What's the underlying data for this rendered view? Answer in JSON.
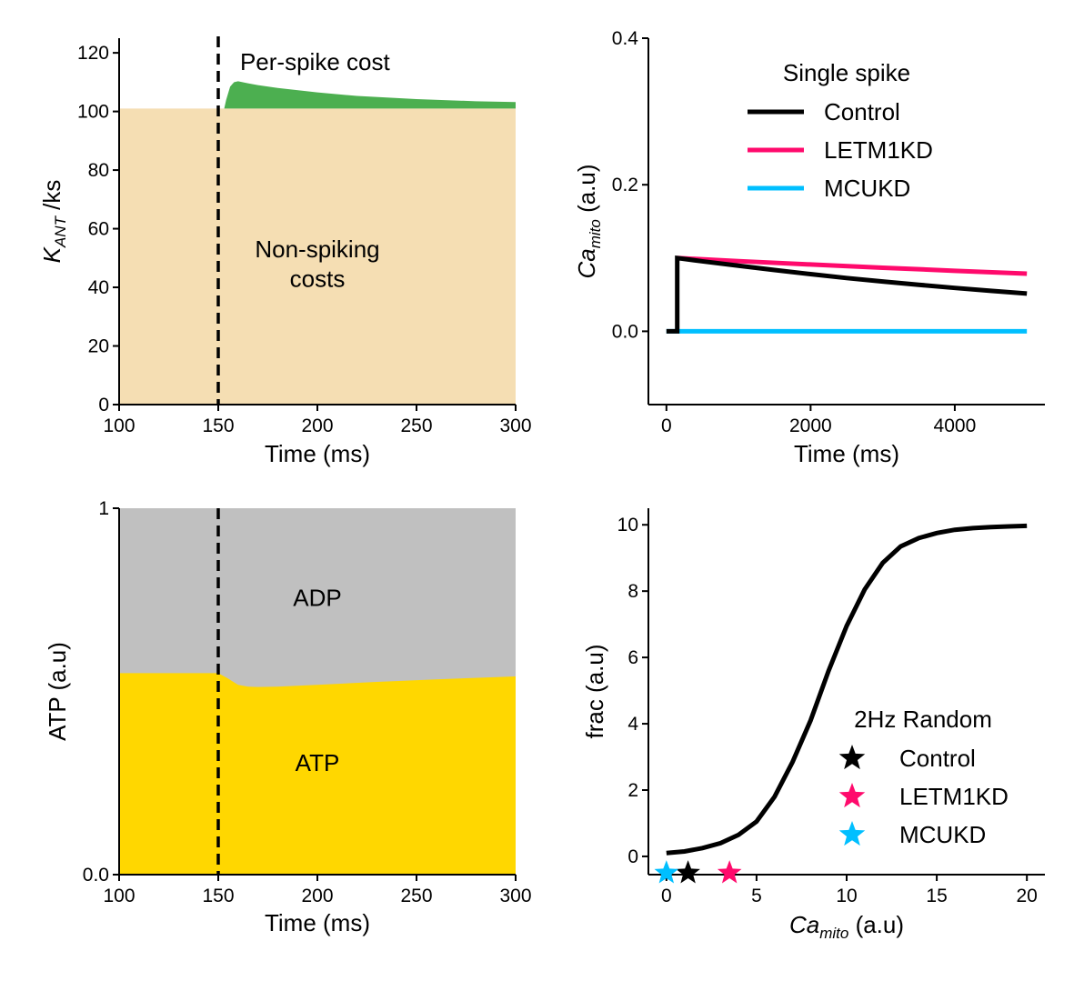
{
  "chart_data": [
    {
      "type": "area",
      "panel": "top-left",
      "xlabel": "Time (ms)",
      "ylabel_main": "K",
      "ylabel_sub": "ANT",
      "ylabel_rest": " /ks",
      "xlim": [
        100,
        300
      ],
      "ylim": [
        0,
        125
      ],
      "xticks": [
        100,
        150,
        200,
        250,
        300
      ],
      "yticks": [
        0,
        20,
        40,
        60,
        80,
        100,
        120
      ],
      "spike_time": 150,
      "baseline": 101,
      "series": [
        {
          "name": "Non-spiking costs",
          "color": "#F5DEB3",
          "x": [
            100,
            300
          ],
          "y": [
            101,
            101
          ]
        },
        {
          "name": "Per-spike cost",
          "color": "#4CAF50",
          "x": [
            153,
            154,
            156,
            158,
            160,
            165,
            170,
            180,
            200,
            220,
            250,
            280,
            300
          ],
          "y": [
            101,
            104,
            108.5,
            110,
            110.3,
            109.6,
            109,
            108,
            106.5,
            105.3,
            104.2,
            103.5,
            103.2
          ]
        }
      ],
      "annotations": [
        {
          "text": "Per-spike cost",
          "x": 161,
          "y": 117
        },
        {
          "text": "Non-spiking",
          "x": 200,
          "y": 53
        },
        {
          "text": "costs",
          "x": 200,
          "y": 43
        }
      ]
    },
    {
      "type": "line",
      "panel": "top-right",
      "xlabel": "Time (ms)",
      "ylabel_main": "Ca",
      "ylabel_sub": "mito",
      "ylabel_rest": " (a.u)",
      "xlim": [
        -250,
        5250
      ],
      "ylim": [
        -0.1,
        0.4
      ],
      "xticks": [
        0,
        2000,
        4000
      ],
      "yticks": [
        0.0,
        0.2,
        0.4
      ],
      "ytick_labels": [
        "0.0",
        "0.2",
        "0.4"
      ],
      "legend_title": "Single spike",
      "legend_position": "top-center",
      "series": [
        {
          "name": "Control",
          "color": "#000000",
          "x": [
            0,
            150,
            150,
            500,
            1000,
            1500,
            2000,
            2500,
            3000,
            3500,
            4000,
            4500,
            5000
          ],
          "y": [
            0,
            0,
            0.1,
            0.0955,
            0.0895,
            0.0836,
            0.078,
            0.0727,
            0.068,
            0.0635,
            0.0592,
            0.0552,
            0.0515
          ]
        },
        {
          "name": "LETM1KD",
          "color": "#FF0A6C",
          "x": [
            150,
            1000,
            2000,
            3000,
            4000,
            5000
          ],
          "y": [
            0.1,
            0.0958,
            0.0912,
            0.0868,
            0.0826,
            0.0787
          ]
        },
        {
          "name": "MCUKD",
          "color": "#00BFFF",
          "x": [
            0,
            5000
          ],
          "y": [
            0,
            0
          ]
        }
      ]
    },
    {
      "type": "area",
      "panel": "bottom-left",
      "xlabel": "Time (ms)",
      "ylabel": "ATP (a.u)",
      "xlim": [
        100,
        300
      ],
      "ylim": [
        0,
        1
      ],
      "xticks": [
        100,
        150,
        200,
        250,
        300
      ],
      "yticks": [
        0,
        1
      ],
      "ytick_labels": [
        "0.0",
        "1"
      ],
      "spike_time": 150,
      "series": [
        {
          "name": "ADP",
          "color": "#C0C0C0",
          "fill_to": 1
        },
        {
          "name": "ATP",
          "color": "#FFD700",
          "x": [
            100,
            150,
            155,
            160,
            165,
            170,
            180,
            200,
            230,
            260,
            300
          ],
          "y": [
            0.55,
            0.55,
            0.535,
            0.518,
            0.513,
            0.512,
            0.513,
            0.518,
            0.526,
            0.533,
            0.541
          ]
        }
      ],
      "annotations": [
        {
          "text": "ADP",
          "x": 200,
          "y": 0.755
        },
        {
          "text": "ATP",
          "x": 200,
          "y": 0.305
        }
      ]
    },
    {
      "type": "line",
      "panel": "bottom-right",
      "xlabel_main": "Ca",
      "xlabel_sub": "mito",
      "xlabel_rest": " (a.u)",
      "ylabel": "frac (a.u)",
      "xlim": [
        -1,
        21
      ],
      "ylim": [
        -0.55,
        10.5
      ],
      "xticks": [
        0,
        5,
        10,
        15,
        20
      ],
      "yticks": [
        0,
        2,
        4,
        6,
        8,
        10
      ],
      "legend_title": "2Hz Random",
      "legend_position": "lower-right",
      "curve": {
        "color": "#000000",
        "x": [
          0,
          1,
          2,
          3,
          4,
          5,
          6,
          7,
          8,
          9,
          10,
          11,
          12,
          13,
          14,
          15,
          16,
          17,
          18,
          19,
          20
        ],
        "y": [
          0.1,
          0.15,
          0.25,
          0.4,
          0.65,
          1.05,
          1.8,
          2.85,
          4.1,
          5.6,
          6.95,
          8.05,
          8.85,
          9.35,
          9.6,
          9.75,
          9.85,
          9.9,
          9.93,
          9.95,
          9.97
        ]
      },
      "series": [
        {
          "name": "Control",
          "color": "#000000",
          "x": 1.2,
          "y": -0.5
        },
        {
          "name": "LETM1KD",
          "color": "#FF0A6C",
          "x": 3.5,
          "y": -0.5
        },
        {
          "name": "MCUKD",
          "color": "#00BFFF",
          "x": 0.0,
          "y": -0.5
        }
      ]
    }
  ]
}
